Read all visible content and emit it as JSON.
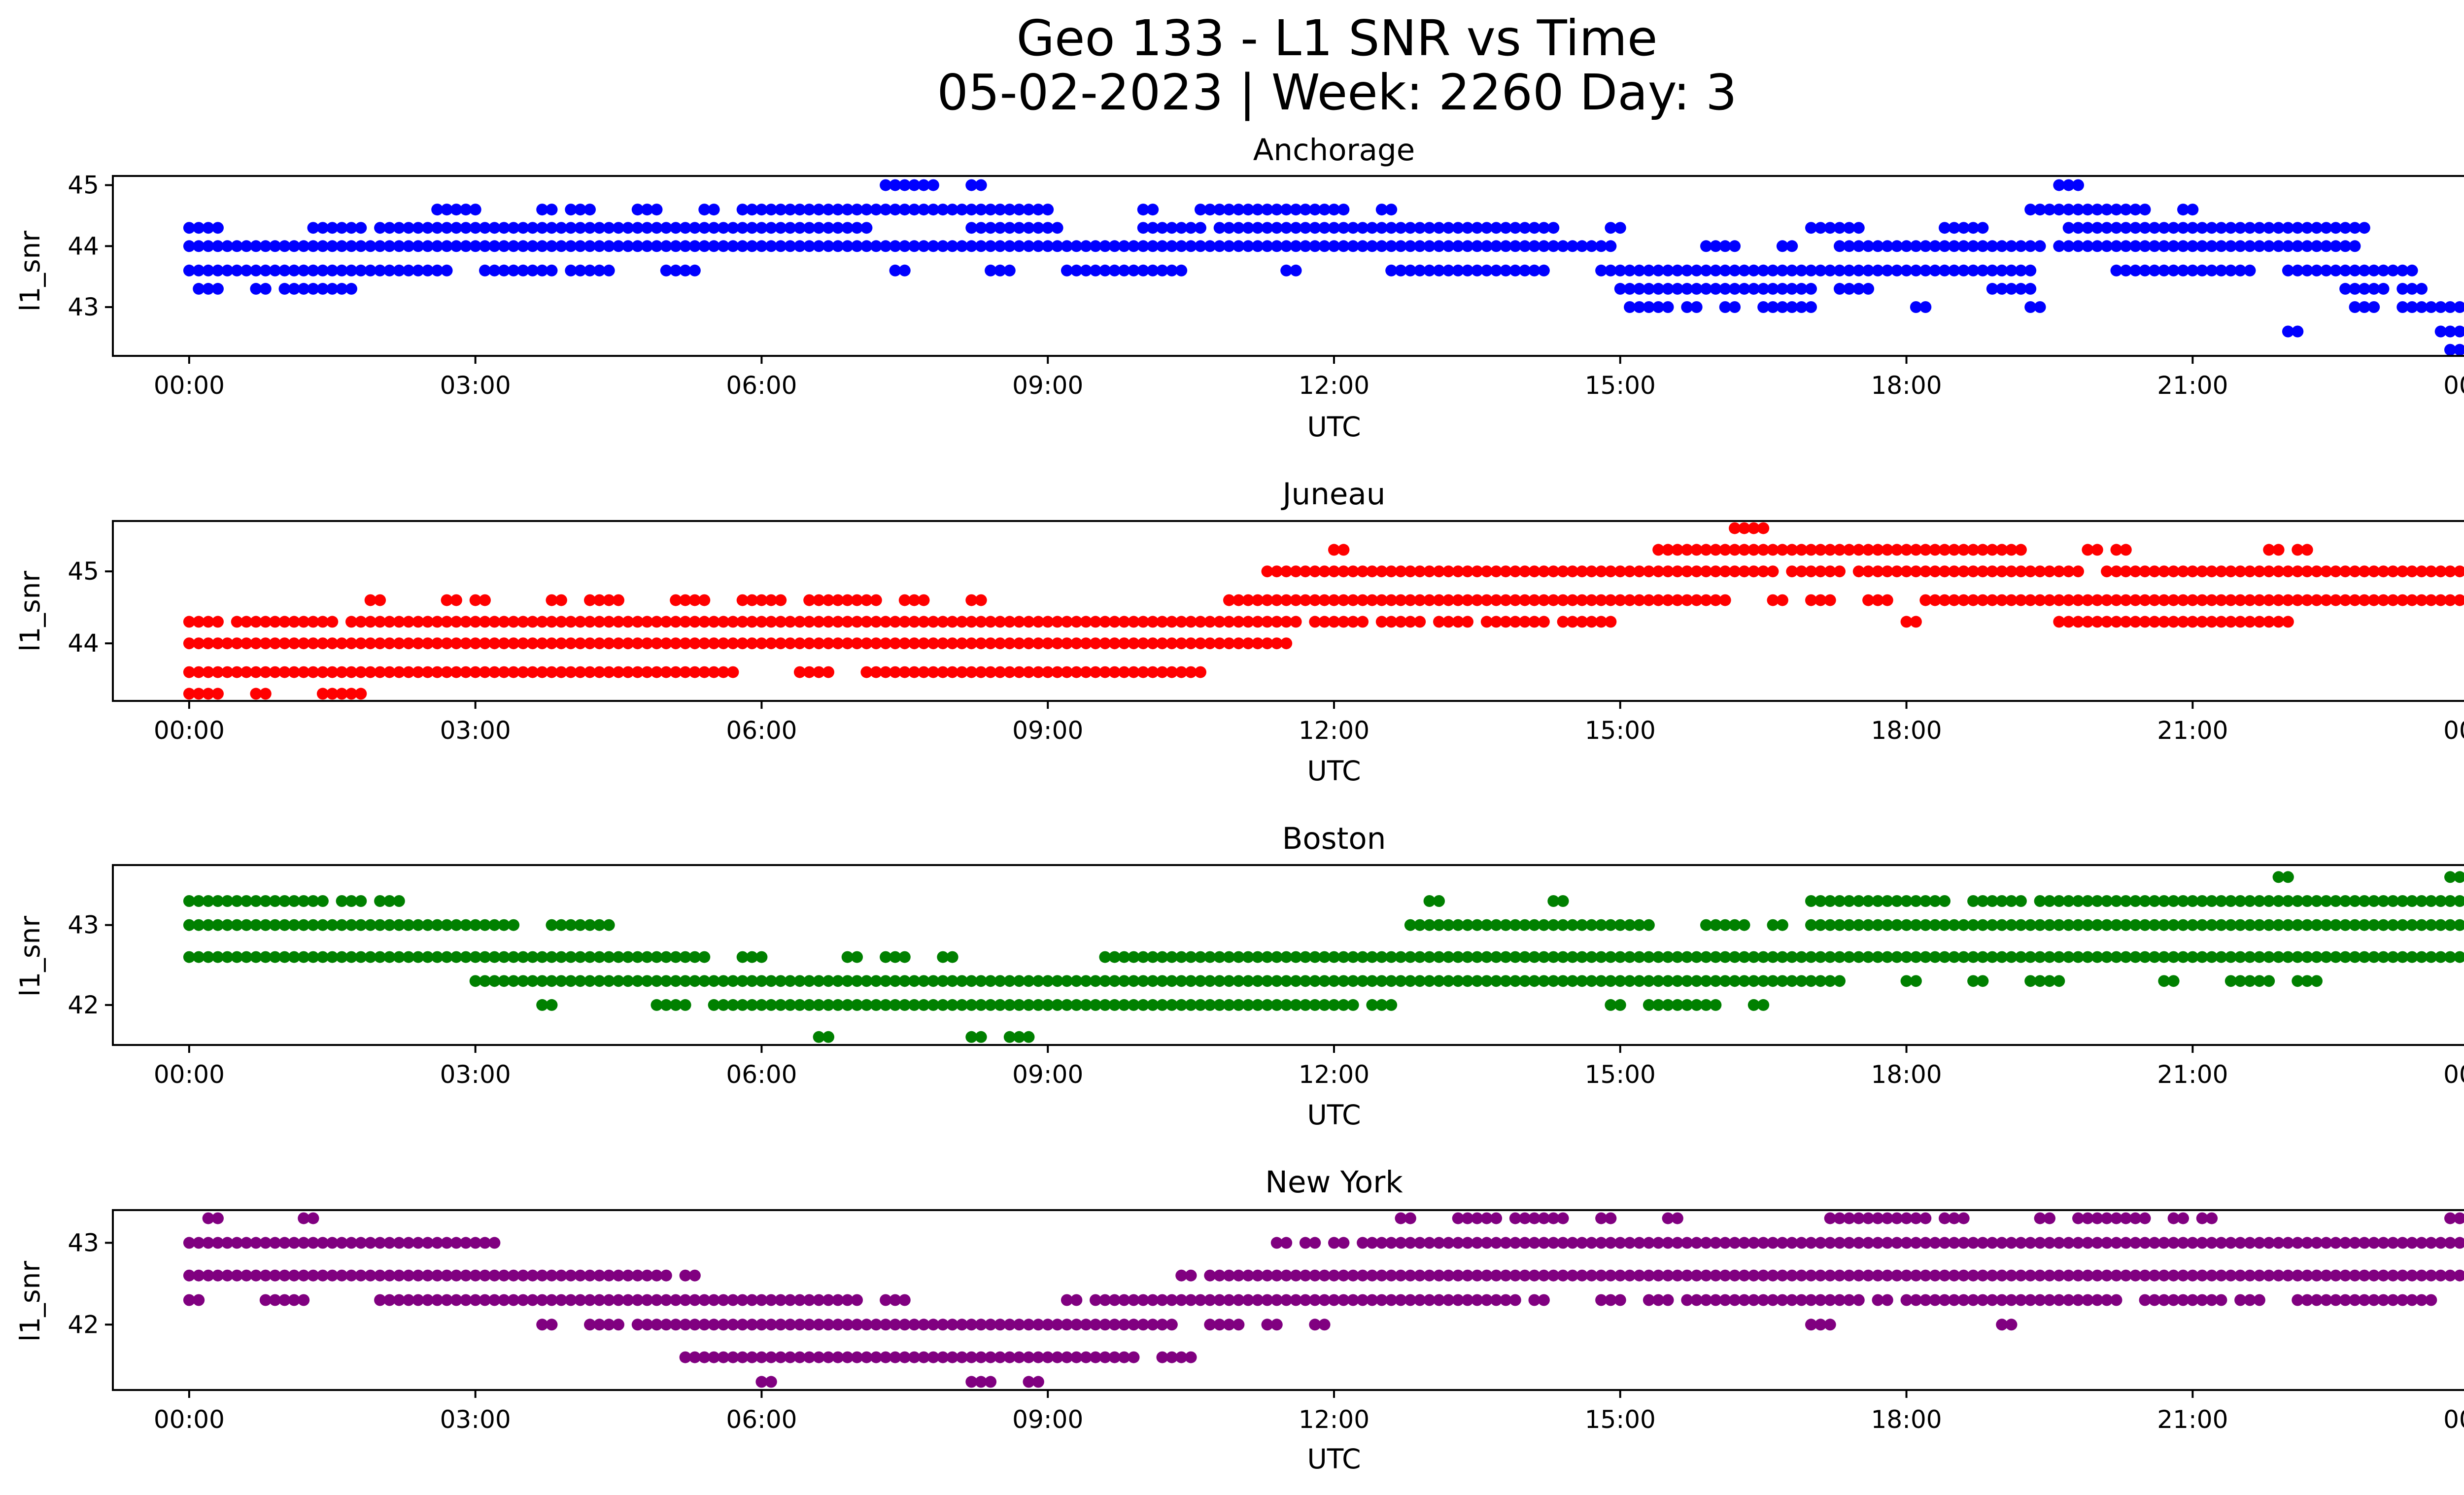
{
  "figure": {
    "title_line1": "Geo 133 - L1 SNR vs Time",
    "title_line2": "05-02-2023 | Week: 2260 Day: 3"
  },
  "chart_data": [
    {
      "type": "scatter",
      "title": "Anchorage",
      "xlabel": "UTC",
      "ylabel": "l1_snr",
      "color": "#0000ff",
      "xlim": [
        -0.8,
        24.8
      ],
      "ylim": [
        42.2,
        45.15
      ],
      "xticks": [
        "00:00",
        "03:00",
        "06:00",
        "09:00",
        "12:00",
        "15:00",
        "18:00",
        "21:00",
        "00:00"
      ],
      "yticks": [
        43,
        44,
        45
      ],
      "level_runs": [
        {
          "y": 44.0,
          "runs": [
            [
              0.0,
              14.9
            ],
            [
              15.9,
              16.2
            ],
            [
              16.7,
              16.8
            ],
            [
              17.3,
              19.4
            ],
            [
              19.6,
              22.7
            ]
          ]
        },
        {
          "y": 43.6,
          "runs": [
            [
              0.0,
              2.7
            ],
            [
              3.1,
              3.8
            ],
            [
              4.0,
              4.4
            ],
            [
              5.0,
              5.3
            ],
            [
              7.4,
              7.5
            ],
            [
              8.4,
              8.6
            ],
            [
              9.2,
              10.4
            ],
            [
              11.5,
              11.6
            ],
            [
              12.6,
              14.2
            ],
            [
              14.8,
              19.3
            ],
            [
              20.2,
              21.6
            ],
            [
              22.0,
              22.4
            ],
            [
              22.5,
              23.3
            ]
          ]
        },
        {
          "y": 44.3,
          "runs": [
            [
              0.0,
              0.3
            ],
            [
              1.3,
              1.8
            ],
            [
              2.0,
              7.1
            ],
            [
              8.2,
              9.1
            ],
            [
              10.0,
              10.6
            ],
            [
              10.8,
              12.4
            ],
            [
              12.5,
              14.3
            ],
            [
              14.9,
              15.0
            ],
            [
              17.0,
              17.5
            ],
            [
              18.4,
              18.8
            ],
            [
              19.7,
              22.8
            ]
          ]
        },
        {
          "y": 44.6,
          "runs": [
            [
              2.6,
              3.0
            ],
            [
              3.7,
              3.8
            ],
            [
              4.0,
              4.2
            ],
            [
              4.7,
              4.9
            ],
            [
              5.4,
              5.5
            ],
            [
              5.8,
              9.0
            ],
            [
              10.0,
              10.1
            ],
            [
              10.6,
              12.1
            ],
            [
              12.5,
              12.6
            ],
            [
              19.3,
              20.5
            ],
            [
              20.9,
              21.0
            ]
          ]
        },
        {
          "y": 43.3,
          "runs": [
            [
              0.1,
              0.3
            ],
            [
              0.7,
              0.8
            ],
            [
              1.0,
              1.7
            ],
            [
              15.0,
              16.3
            ],
            [
              16.4,
              17.0
            ],
            [
              17.3,
              17.6
            ],
            [
              18.9,
              19.3
            ],
            [
              22.6,
              23.0
            ],
            [
              23.2,
              23.4
            ]
          ]
        },
        {
          "y": 43.0,
          "runs": [
            [
              15.1,
              15.3
            ],
            [
              15.4,
              15.5
            ],
            [
              15.7,
              15.8
            ],
            [
              16.1,
              16.2
            ],
            [
              16.5,
              17.0
            ],
            [
              18.1,
              18.2
            ],
            [
              19.3,
              19.4
            ],
            [
              22.7,
              22.9
            ],
            [
              23.2,
              24.0
            ]
          ]
        },
        {
          "y": 45.0,
          "runs": [
            [
              7.3,
              7.8
            ],
            [
              8.2,
              8.3
            ],
            [
              19.6,
              19.8
            ]
          ]
        },
        {
          "y": 42.6,
          "runs": [
            [
              22.0,
              22.1
            ],
            [
              23.6,
              24.0
            ]
          ]
        },
        {
          "y": 42.3,
          "runs": [
            [
              23.7,
              23.8
            ],
            [
              23.9,
              24.0
            ]
          ]
        }
      ]
    },
    {
      "type": "scatter",
      "title": "Juneau",
      "xlabel": "UTC",
      "ylabel": "l1_snr",
      "color": "#ff0000",
      "xlim": [
        -0.8,
        24.8
      ],
      "ylim": [
        43.2,
        45.7
      ],
      "xticks": [
        "00:00",
        "03:00",
        "06:00",
        "09:00",
        "12:00",
        "15:00",
        "18:00",
        "21:00",
        "00:00"
      ],
      "yticks": [
        44,
        45
      ],
      "level_runs": [
        {
          "y": 44.0,
          "runs": [
            [
              0.0,
              11.5
            ]
          ]
        },
        {
          "y": 43.6,
          "runs": [
            [
              0.0,
              3.0
            ],
            [
              3.1,
              5.7
            ],
            [
              6.4,
              6.7
            ],
            [
              7.1,
              10.6
            ]
          ]
        },
        {
          "y": 44.3,
          "runs": [
            [
              0.0,
              0.3
            ],
            [
              0.5,
              1.5
            ],
            [
              1.7,
              11.6
            ],
            [
              11.8,
              12.3
            ],
            [
              12.5,
              12.9
            ],
            [
              13.1,
              13.4
            ],
            [
              13.6,
              14.2
            ],
            [
              14.4,
              14.9
            ],
            [
              18.0,
              18.1
            ],
            [
              19.6,
              22.0
            ],
            [
              24.0,
              24.1
            ]
          ]
        },
        {
          "y": 44.6,
          "runs": [
            [
              1.9,
              2.0
            ],
            [
              2.7,
              2.8
            ],
            [
              3.0,
              3.1
            ],
            [
              3.8,
              3.9
            ],
            [
              4.2,
              4.5
            ],
            [
              5.1,
              5.4
            ],
            [
              5.8,
              6.2
            ],
            [
              6.5,
              7.2
            ],
            [
              7.5,
              7.7
            ],
            [
              8.2,
              8.3
            ],
            [
              10.9,
              16.1
            ],
            [
              16.6,
              16.7
            ],
            [
              17.0,
              17.2
            ],
            [
              17.6,
              17.8
            ],
            [
              18.2,
              24.0
            ]
          ]
        },
        {
          "y": 45.0,
          "runs": [
            [
              11.3,
              16.6
            ],
            [
              16.8,
              17.3
            ],
            [
              17.5,
              19.8
            ],
            [
              20.1,
              24.0
            ]
          ]
        },
        {
          "y": 45.3,
          "runs": [
            [
              12.0,
              12.1
            ],
            [
              15.4,
              19.2
            ],
            [
              19.9,
              20.0
            ],
            [
              20.2,
              20.3
            ],
            [
              21.8,
              21.9
            ],
            [
              22.1,
              22.2
            ]
          ]
        },
        {
          "y": 45.6,
          "runs": [
            [
              16.2,
              16.5
            ]
          ]
        },
        {
          "y": 43.3,
          "runs": [
            [
              0.0,
              0.3
            ],
            [
              0.7,
              0.8
            ],
            [
              1.4,
              1.8
            ]
          ]
        }
      ]
    },
    {
      "type": "scatter",
      "title": "Boston",
      "xlabel": "UTC",
      "ylabel": "l1_snr",
      "color": "#008000",
      "xlim": [
        -0.8,
        24.8
      ],
      "ylim": [
        41.5,
        43.75
      ],
      "xticks": [
        "00:00",
        "03:00",
        "06:00",
        "09:00",
        "12:00",
        "15:00",
        "18:00",
        "21:00",
        "00:00"
      ],
      "yticks": [
        42,
        43
      ],
      "level_runs": [
        {
          "y": 43.3,
          "runs": [
            [
              0.0,
              1.4
            ],
            [
              1.6,
              1.8
            ],
            [
              2.0,
              2.2
            ],
            [
              13.0,
              13.1
            ],
            [
              14.3,
              14.4
            ],
            [
              17.0,
              18.4
            ],
            [
              18.7,
              19.2
            ],
            [
              19.4,
              24.0
            ]
          ]
        },
        {
          "y": 43.0,
          "runs": [
            [
              0.0,
              3.4
            ],
            [
              3.8,
              4.4
            ],
            [
              12.8,
              15.3
            ],
            [
              15.9,
              16.3
            ],
            [
              16.6,
              16.7
            ],
            [
              17.0,
              24.0
            ]
          ]
        },
        {
          "y": 42.6,
          "runs": [
            [
              0.0,
              0.1
            ],
            [
              0.2,
              5.4
            ],
            [
              5.8,
              6.0
            ],
            [
              6.9,
              7.0
            ],
            [
              7.3,
              7.5
            ],
            [
              7.9,
              8.0
            ],
            [
              9.6,
              24.0
            ]
          ]
        },
        {
          "y": 42.3,
          "runs": [
            [
              3.0,
              17.3
            ],
            [
              18.0,
              18.1
            ],
            [
              18.7,
              18.8
            ],
            [
              19.3,
              19.6
            ],
            [
              20.7,
              20.8
            ],
            [
              21.4,
              21.8
            ],
            [
              22.1,
              22.3
            ]
          ]
        },
        {
          "y": 42.0,
          "runs": [
            [
              3.7,
              3.8
            ],
            [
              4.9,
              5.2
            ],
            [
              5.5,
              12.2
            ],
            [
              12.4,
              12.6
            ],
            [
              14.9,
              15.0
            ],
            [
              15.3,
              16.0
            ],
            [
              16.4,
              16.5
            ]
          ]
        },
        {
          "y": 41.6,
          "runs": [
            [
              6.6,
              6.7
            ],
            [
              8.2,
              8.3
            ],
            [
              8.6,
              8.8
            ]
          ]
        },
        {
          "y": 43.6,
          "runs": [
            [
              21.9,
              22.0
            ],
            [
              23.7,
              23.8
            ]
          ]
        }
      ]
    },
    {
      "type": "scatter",
      "title": "New York",
      "xlabel": "UTC",
      "ylabel": "l1_snr",
      "color": "#800080",
      "xlim": [
        -0.8,
        24.8
      ],
      "ylim": [
        41.2,
        43.4
      ],
      "xticks": [
        "00:00",
        "03:00",
        "06:00",
        "09:00",
        "12:00",
        "15:00",
        "18:00",
        "21:00",
        "00:00"
      ],
      "yticks": [
        42,
        43
      ],
      "level_runs": [
        {
          "y": 43.0,
          "runs": [
            [
              0.0,
              3.2
            ],
            [
              11.4,
              11.5
            ],
            [
              11.7,
              11.8
            ],
            [
              12.0,
              12.1
            ],
            [
              12.3,
              24.0
            ]
          ]
        },
        {
          "y": 42.6,
          "runs": [
            [
              0.0,
              5.0
            ],
            [
              5.2,
              5.3
            ],
            [
              10.4,
              10.5
            ],
            [
              10.7,
              24.0
            ]
          ]
        },
        {
          "y": 42.3,
          "runs": [
            [
              0.0,
              0.1
            ],
            [
              0.8,
              1.2
            ],
            [
              2.0,
              2.2
            ],
            [
              2.3,
              7.0
            ],
            [
              7.3,
              7.5
            ],
            [
              9.2,
              9.3
            ],
            [
              9.5,
              13.9
            ],
            [
              14.1,
              14.2
            ],
            [
              14.8,
              15.0
            ],
            [
              15.3,
              15.5
            ],
            [
              15.7,
              17.5
            ],
            [
              17.7,
              17.8
            ],
            [
              18.0,
              19.5
            ],
            [
              19.6,
              20.2
            ],
            [
              20.5,
              20.7
            ],
            [
              20.8,
              21.3
            ],
            [
              21.5,
              21.7
            ],
            [
              22.1,
              23.5
            ]
          ]
        },
        {
          "y": 42.0,
          "runs": [
            [
              3.7,
              3.8
            ],
            [
              4.2,
              4.5
            ],
            [
              4.7,
              10.3
            ],
            [
              10.7,
              11.0
            ],
            [
              11.3,
              11.4
            ],
            [
              11.8,
              11.9
            ],
            [
              17.0,
              17.2
            ],
            [
              19.0,
              19.1
            ]
          ]
        },
        {
          "y": 41.6,
          "runs": [
            [
              5.2,
              9.9
            ],
            [
              10.2,
              10.5
            ]
          ]
        },
        {
          "y": 41.3,
          "runs": [
            [
              6.0,
              6.1
            ],
            [
              8.2,
              8.4
            ],
            [
              8.8,
              8.9
            ]
          ]
        },
        {
          "y": 43.3,
          "runs": [
            [
              0.2,
              0.3
            ],
            [
              1.2,
              1.3
            ],
            [
              12.7,
              12.8
            ],
            [
              13.3,
              13.7
            ],
            [
              13.9,
              14.4
            ],
            [
              14.8,
              14.9
            ],
            [
              15.5,
              15.6
            ],
            [
              17.2,
              18.2
            ],
            [
              18.4,
              18.6
            ],
            [
              19.4,
              19.5
            ],
            [
              19.8,
              20.5
            ],
            [
              20.8,
              20.9
            ],
            [
              21.1,
              21.2
            ],
            [
              23.7,
              23.9
            ]
          ]
        }
      ]
    }
  ]
}
